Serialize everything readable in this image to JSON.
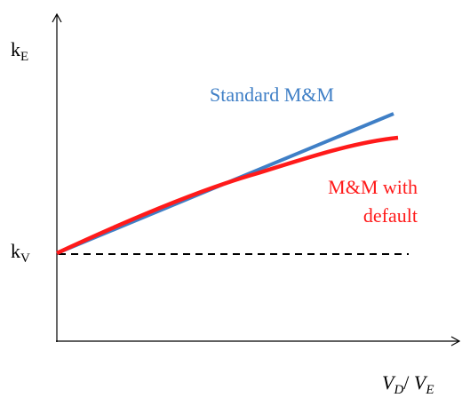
{
  "axes": {
    "y_label": {
      "main": "k",
      "sub": "E"
    },
    "baseline_label": {
      "main": "k",
      "sub": "V"
    },
    "x_label": {
      "first": "V",
      "first_sub": "D",
      "separator": "/ ",
      "second": "V",
      "second_sub": "E"
    }
  },
  "curves": [
    {
      "name_lines": [
        "Standard M&M"
      ],
      "color": "#3f7fc6"
    },
    {
      "name_lines": [
        "M&M with",
        "default"
      ],
      "color": "#ff1a1a"
    }
  ]
}
